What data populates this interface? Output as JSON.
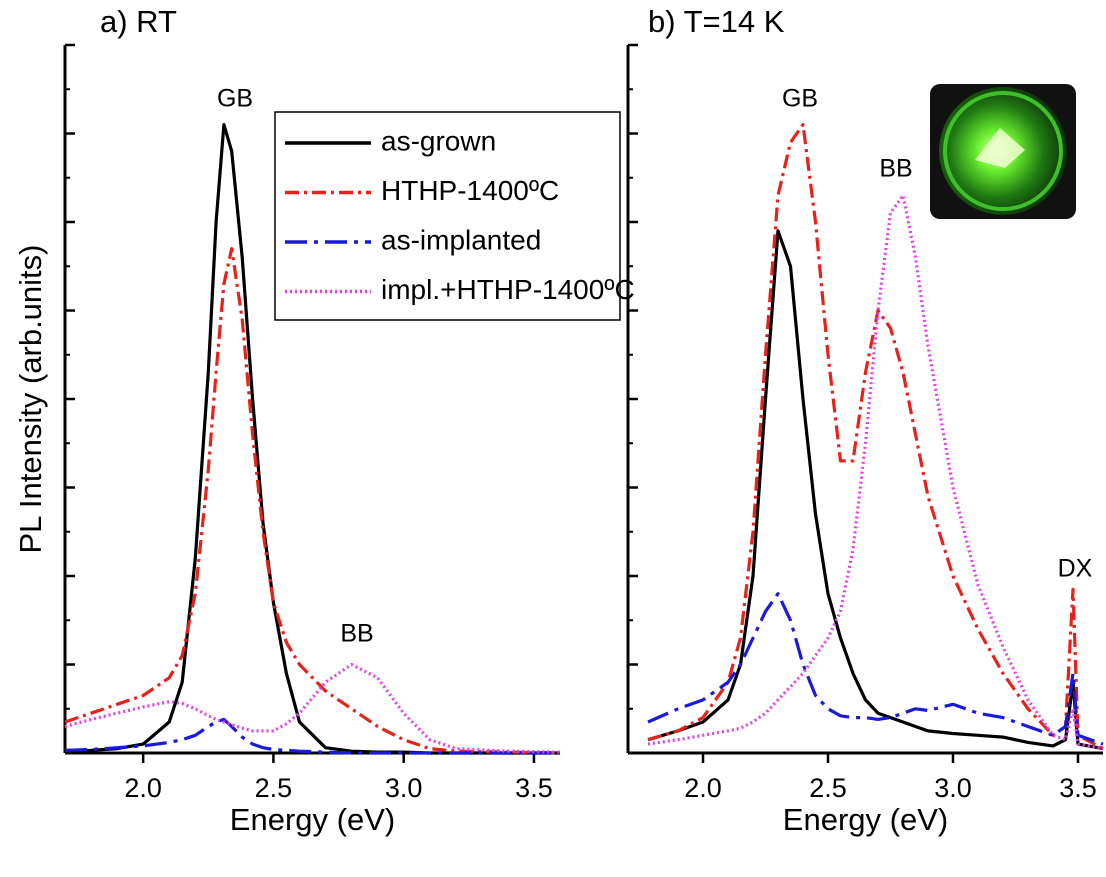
{
  "chart_data": [
    {
      "type": "line",
      "title": "a) RT",
      "xlabel": "Energy (eV)",
      "ylabel": "PL Intensity (arb.units)",
      "xlim": [
        1.7,
        3.6
      ],
      "ylim": [
        0,
        8
      ],
      "xticks": [
        {
          "value": 2,
          "label": "2.0"
        },
        2.5,
        {
          "value": 3,
          "label": "3.0"
        },
        3.5
      ],
      "yticks": [
        0,
        1,
        2,
        3,
        4,
        5,
        6,
        7,
        8
      ],
      "legend": "upper right",
      "annotations": [
        "GB",
        "BB"
      ],
      "x": [
        1.7,
        1.8,
        1.9,
        2.0,
        2.1,
        2.15,
        2.2,
        2.25,
        2.28,
        2.31,
        2.34,
        2.38,
        2.42,
        2.46,
        2.5,
        2.55,
        2.6,
        2.7,
        2.8,
        2.9,
        3.0,
        3.1,
        3.2,
        3.4,
        3.6
      ],
      "series": [
        {
          "name": "as-grown",
          "color": "#000000",
          "linestyle": "solid",
          "values": [
            0.02,
            0.03,
            0.05,
            0.1,
            0.35,
            0.8,
            2.2,
            4.3,
            6.0,
            7.1,
            6.8,
            5.6,
            4.0,
            2.6,
            1.7,
            0.9,
            0.35,
            0.06,
            0.02,
            0.01,
            0.01,
            0,
            0,
            0,
            0
          ]
        },
        {
          "name": "HTHP-1400ºC",
          "color": "#e8221b",
          "linestyle": "dashdot",
          "values": [
            0.35,
            0.45,
            0.55,
            0.65,
            0.85,
            1.1,
            1.8,
            3.2,
            4.3,
            5.3,
            5.7,
            4.9,
            3.6,
            2.5,
            1.7,
            1.25,
            1.0,
            0.7,
            0.5,
            0.3,
            0.15,
            0.05,
            0.02,
            0.01,
            0
          ]
        },
        {
          "name": "as-implanted",
          "color": "#1a1adc",
          "linestyle": "longdashdot",
          "values": [
            0.03,
            0.04,
            0.06,
            0.08,
            0.12,
            0.15,
            0.2,
            0.3,
            0.35,
            0.38,
            0.3,
            0.18,
            0.1,
            0.06,
            0.04,
            0.03,
            0.02,
            0.01,
            0,
            0,
            0,
            0,
            0,
            0,
            0
          ]
        },
        {
          "name": "impl.+HTHP-1400ºC",
          "color": "#e83ee8",
          "linestyle": "dotted",
          "values": [
            0.3,
            0.38,
            0.45,
            0.52,
            0.58,
            0.56,
            0.5,
            0.42,
            0.38,
            0.35,
            0.32,
            0.28,
            0.25,
            0.25,
            0.25,
            0.33,
            0.45,
            0.8,
            1.0,
            0.85,
            0.45,
            0.15,
            0.05,
            0.02,
            0.01
          ]
        }
      ]
    },
    {
      "type": "line",
      "title": "b) T=14 K",
      "xlabel": "Energy (eV)",
      "xlim": [
        1.7,
        3.6
      ],
      "ylim": [
        0,
        8
      ],
      "xticks": [
        {
          "value": 2,
          "label": "2.0"
        },
        2.5,
        {
          "value": 3,
          "label": "3.0"
        },
        3.5
      ],
      "yticks": [
        0,
        1,
        2,
        3,
        4,
        5,
        6,
        7,
        8
      ],
      "annotations": [
        "GB",
        "BB",
        "DX"
      ],
      "x": [
        1.78,
        1.9,
        2.0,
        2.1,
        2.15,
        2.2,
        2.25,
        2.3,
        2.35,
        2.4,
        2.45,
        2.5,
        2.55,
        2.6,
        2.65,
        2.7,
        2.75,
        2.8,
        2.85,
        2.9,
        3.0,
        3.1,
        3.2,
        3.3,
        3.4,
        3.45,
        3.48,
        3.5,
        3.6
      ],
      "series": [
        {
          "name": "as-grown",
          "color": "#000000",
          "linestyle": "solid",
          "values": [
            0.15,
            0.25,
            0.35,
            0.6,
            1.0,
            2.0,
            4.0,
            5.9,
            5.5,
            4.0,
            2.7,
            1.8,
            1.3,
            0.9,
            0.6,
            0.45,
            0.4,
            0.35,
            0.3,
            0.25,
            0.22,
            0.2,
            0.18,
            0.12,
            0.08,
            0.15,
            0.8,
            0.1,
            0.05
          ]
        },
        {
          "name": "HTHP-1400ºC",
          "color": "#e8221b",
          "linestyle": "dashdot",
          "values": [
            0.15,
            0.25,
            0.4,
            0.8,
            1.3,
            2.5,
            4.5,
            6.3,
            6.9,
            7.1,
            6.0,
            4.5,
            3.3,
            3.3,
            4.3,
            5.0,
            4.8,
            4.3,
            3.6,
            2.9,
            2.0,
            1.4,
            0.9,
            0.5,
            0.2,
            0.3,
            1.85,
            0.2,
            0.05
          ]
        },
        {
          "name": "as-implanted",
          "color": "#1a1adc",
          "linestyle": "longdashdot",
          "values": [
            0.35,
            0.5,
            0.6,
            0.8,
            1.0,
            1.3,
            1.6,
            1.8,
            1.5,
            1.0,
            0.65,
            0.5,
            0.42,
            0.4,
            0.4,
            0.38,
            0.4,
            0.45,
            0.5,
            0.48,
            0.55,
            0.45,
            0.4,
            0.3,
            0.2,
            0.3,
            0.9,
            0.2,
            0.1
          ]
        },
        {
          "name": "impl.+HTHP-1400ºC",
          "color": "#e83ee8",
          "linestyle": "dotted",
          "values": [
            0.1,
            0.15,
            0.2,
            0.25,
            0.28,
            0.35,
            0.45,
            0.6,
            0.75,
            0.9,
            1.1,
            1.3,
            1.6,
            2.3,
            3.5,
            5.0,
            6.1,
            6.3,
            5.6,
            4.6,
            3.0,
            1.9,
            1.2,
            0.6,
            0.2,
            0.15,
            0.5,
            0.1,
            0.05
          ]
        }
      ]
    }
  ]
}
